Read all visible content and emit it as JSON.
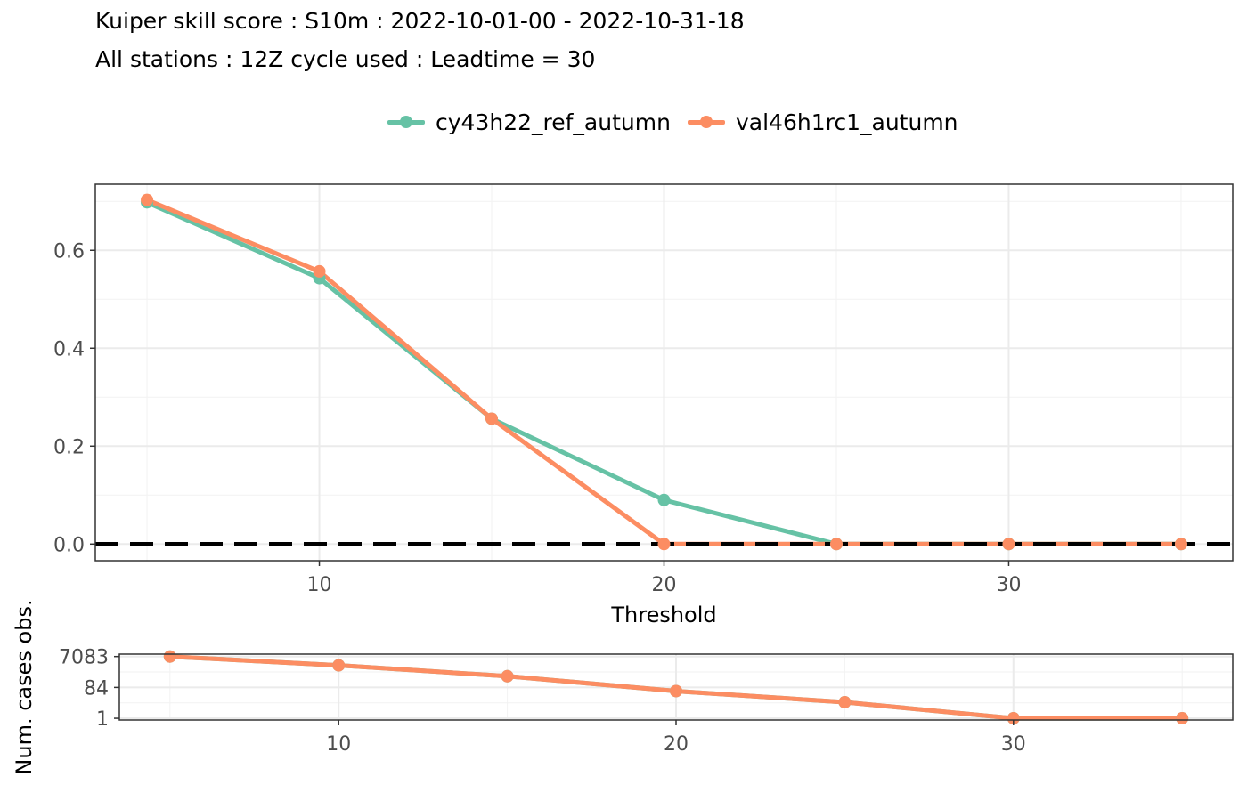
{
  "header": {
    "title": "Kuiper skill score : S10m : 2022-10-01-00 - 2022-10-31-18",
    "subtitle": "All stations : 12Z cycle used : Leadtime = 30"
  },
  "legend": {
    "placement": "top",
    "items": [
      {
        "label": "cy43h22_ref_autumn",
        "color": "#66c2a5"
      },
      {
        "label": "val46h1rc1_autumn",
        "color": "#fc8d62"
      }
    ]
  },
  "colors": {
    "reference_line": "#000000",
    "grid": "#ebebeb",
    "panel_border": "#333333"
  },
  "chart_data": [
    {
      "type": "line",
      "xlabel": "Threshold",
      "ylabel": "",
      "xlim": [
        3.5,
        36.5
      ],
      "ylim": [
        -0.034,
        0.735
      ],
      "x_ticks": [
        10,
        20,
        30
      ],
      "y_ticks": [
        0.0,
        0.2,
        0.4,
        0.6
      ],
      "y_tick_labels": [
        "0.0",
        "0.2",
        "0.4",
        "0.6"
      ],
      "grid": true,
      "reference_line": {
        "y": 0.0,
        "style": "dashed"
      },
      "series": [
        {
          "name": "cy43h22_ref_autumn",
          "color": "#66c2a5",
          "x": [
            5,
            10,
            15,
            20,
            25,
            30,
            35
          ],
          "y": [
            0.698,
            0.543,
            0.256,
            0.09,
            0.0,
            0.0,
            0.0
          ]
        },
        {
          "name": "val46h1rc1_autumn",
          "color": "#fc8d62",
          "x": [
            5,
            10,
            15,
            20,
            25,
            30,
            35
          ],
          "y": [
            0.703,
            0.557,
            0.256,
            0.0,
            0.0,
            0.0,
            0.0
          ]
        }
      ]
    },
    {
      "type": "line",
      "xlabel": "",
      "ylabel": "Num. cases obs.",
      "xlim": [
        3.5,
        36.5
      ],
      "y_scale": "log",
      "ylim": [
        0.78,
        10000
      ],
      "x_ticks": [
        10,
        20,
        30
      ],
      "y_ticks": [
        1,
        84,
        7083
      ],
      "y_tick_labels": [
        "1",
        "84",
        "7083"
      ],
      "grid": true,
      "series": [
        {
          "name": "cy43h22_ref_autumn",
          "color": "#66c2a5",
          "x": [
            5,
            10,
            15,
            20,
            25,
            30,
            35
          ],
          "y": [
            7083,
            2000,
            420,
            50,
            10,
            1,
            1
          ]
        },
        {
          "name": "val46h1rc1_autumn",
          "color": "#fc8d62",
          "x": [
            5,
            10,
            15,
            20,
            25,
            30,
            35
          ],
          "y": [
            7083,
            2000,
            420,
            50,
            10,
            1,
            1
          ]
        }
      ]
    }
  ]
}
